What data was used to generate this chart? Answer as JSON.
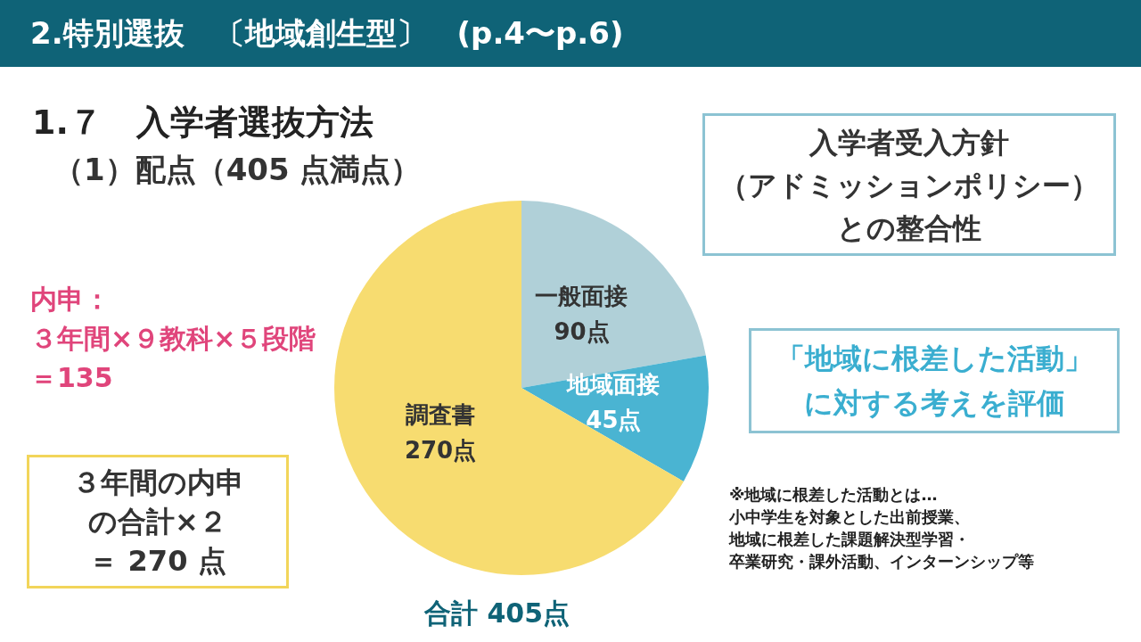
{
  "chart_data": {
    "type": "pie",
    "title": "2.特別選抜　〔地域創生型〕　(p.4〜p.6)",
    "subtitle": "1.７　入学者選抜方法",
    "categories": [
      "一般面接",
      "地域面接",
      "調査書"
    ],
    "values": [
      90,
      45,
      270
    ],
    "colors": [
      "#b0d0d8",
      "#4ab4d2",
      "#f7dc70"
    ],
    "value_labels": [
      "90点",
      "45点",
      "270点"
    ],
    "annotations": [
      "（1）配点（405 点満点）",
      "入学者受入方針（アドミッションポリシー）との整合性",
      "「地域に根差した活動」に対する考えを評価",
      "内申：３年間×９教科×５段階＝135",
      "３年間の内申の合計×２＝ 270 点",
      "※地域に根差した活動とは…小中学生を対象とした出前授業、地域に根差した課題解決型学習・卒業研究・課外活動、インターンシップ等",
      "合計 405点"
    ]
  }
}
